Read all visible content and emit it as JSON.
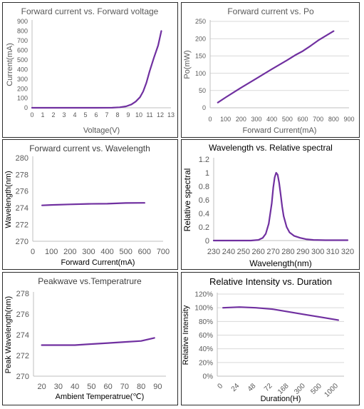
{
  "colors": {
    "line": "#7030a0",
    "axis": "#bfbfbf",
    "text": "#595959",
    "border": "#2b2b2b"
  },
  "chart_data": [
    {
      "type": "line",
      "title": "Forward current vs. Forward voltage",
      "xlabel": "Voltage(V)",
      "ylabel": "Current(mA)",
      "xlim": [
        0,
        13
      ],
      "ylim": [
        0,
        900
      ],
      "xticks": [
        0,
        1,
        2,
        3,
        4,
        5,
        6,
        7,
        8,
        9,
        10,
        11,
        12,
        13
      ],
      "yticks": [
        0,
        100,
        200,
        300,
        400,
        500,
        600,
        700,
        800,
        900
      ],
      "grid": false,
      "series": [
        {
          "x": [
            0,
            2,
            4,
            6,
            7.5,
            8.2,
            8.8,
            9.3,
            9.7,
            10.1,
            10.4,
            10.7,
            11.0,
            11.4,
            11.8,
            12.1
          ],
          "y": [
            0,
            0,
            0,
            0,
            1,
            5,
            15,
            35,
            65,
            110,
            170,
            260,
            380,
            520,
            650,
            800
          ]
        }
      ]
    },
    {
      "type": "line",
      "title": "Forward current vs. Po",
      "xlabel": "Forward Current(mA)",
      "ylabel": "Po(mW)",
      "xlim": [
        0,
        900
      ],
      "ylim": [
        0,
        250
      ],
      "xticks": [
        0,
        100,
        200,
        300,
        400,
        500,
        600,
        700,
        800,
        900
      ],
      "yticks": [
        0,
        50,
        100,
        150,
        200,
        250
      ],
      "grid": true,
      "series": [
        {
          "x": [
            50,
            100,
            200,
            300,
            400,
            500,
            550,
            600,
            650,
            700,
            800
          ],
          "y": [
            15,
            30,
            58,
            85,
            112,
            138,
            152,
            164,
            179,
            195,
            222
          ]
        }
      ]
    },
    {
      "type": "line",
      "title": "Forward current vs. Wavelength",
      "xlabel": "Forward Current(mA)",
      "ylabel": "Wavelength(nm)",
      "xlim": [
        0,
        700
      ],
      "ylim": [
        270,
        280
      ],
      "xticks": [
        0,
        100,
        200,
        300,
        400,
        500,
        600,
        700
      ],
      "yticks": [
        270,
        272,
        274,
        276,
        278,
        280
      ],
      "grid": false,
      "series": [
        {
          "x": [
            50,
            100,
            200,
            300,
            400,
            500,
            600
          ],
          "y": [
            274.3,
            274.35,
            274.42,
            274.48,
            274.5,
            274.58,
            274.6
          ]
        }
      ]
    },
    {
      "type": "line",
      "title": "Wavelength vs. Relative spectral",
      "xlabel": "Wavelength(nm)",
      "ylabel": "Relative spectral",
      "xlim": [
        230,
        320
      ],
      "ylim": [
        0,
        1.2
      ],
      "xticks": [
        230,
        240,
        250,
        260,
        270,
        280,
        290,
        300,
        310,
        320
      ],
      "yticks": [
        0,
        0.2,
        0.4,
        0.6,
        0.8,
        1,
        1.2
      ],
      "grid": false,
      "series": [
        {
          "x": [
            230,
            255,
            260,
            263,
            265,
            267,
            269,
            270,
            271,
            272,
            273,
            274,
            275,
            276,
            277,
            279,
            281,
            284,
            288,
            292,
            297,
            305,
            320
          ],
          "y": [
            0,
            0,
            0.01,
            0.04,
            0.1,
            0.25,
            0.55,
            0.78,
            0.93,
            1.0,
            0.97,
            0.85,
            0.68,
            0.5,
            0.36,
            0.2,
            0.12,
            0.07,
            0.04,
            0.02,
            0.01,
            0.005,
            0.005
          ]
        }
      ]
    },
    {
      "type": "line",
      "title": "Peakwave vs.Temperatrure",
      "xlabel": "Ambient Temperatrue(℃)",
      "ylabel": "Peak Wavelength(nm)",
      "xlim": [
        15,
        95
      ],
      "ylim": [
        270,
        278
      ],
      "xticks": [
        20,
        30,
        40,
        50,
        60,
        70,
        80,
        90
      ],
      "yticks": [
        270,
        272,
        274,
        276,
        278
      ],
      "grid": false,
      "series": [
        {
          "x": [
            20,
            30,
            40,
            50,
            60,
            70,
            80,
            88
          ],
          "y": [
            273.0,
            273.0,
            273.0,
            273.1,
            273.2,
            273.3,
            273.4,
            273.7
          ]
        }
      ]
    },
    {
      "type": "line",
      "title": "Relative Intensity vs. Duration",
      "xlabel": "Duration(H)",
      "ylabel": "Relative Intensity",
      "categories": [
        "0",
        "24",
        "48",
        "72",
        "168",
        "300",
        "500",
        "1000"
      ],
      "ylim": [
        0,
        120
      ],
      "yticks": [
        "0%",
        "20%",
        "40%",
        "60%",
        "80%",
        "100%",
        "120%"
      ],
      "grid": true,
      "series": [
        {
          "x": [
            "0",
            "24",
            "48",
            "72",
            "168",
            "300",
            "500",
            "1000"
          ],
          "y": [
            100,
            101,
            100,
            98,
            94,
            90,
            86,
            82
          ]
        }
      ]
    }
  ]
}
